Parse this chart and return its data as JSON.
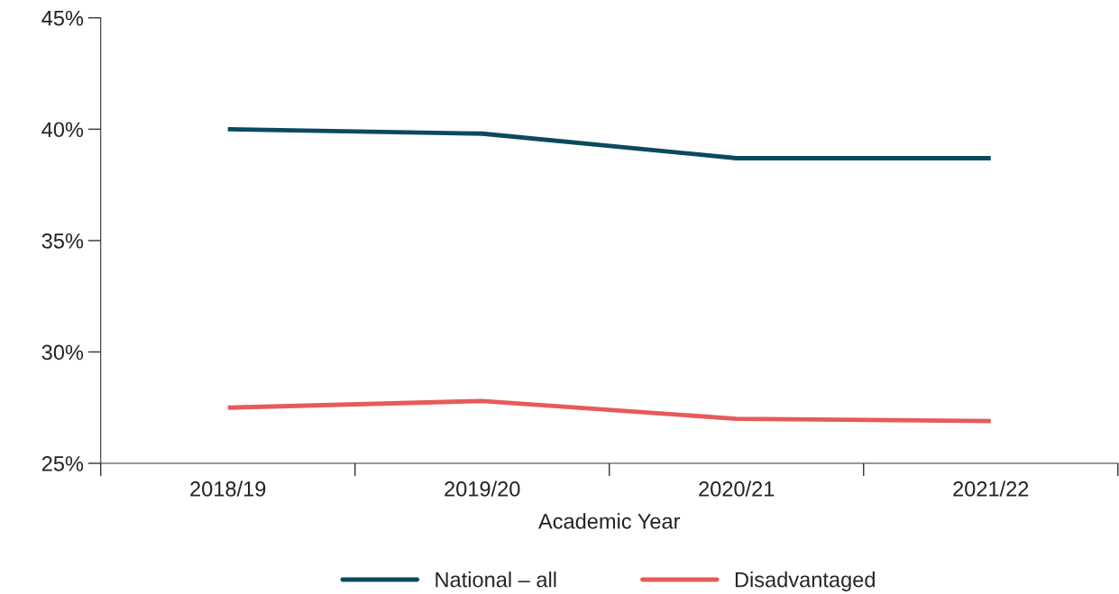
{
  "chart_data": {
    "type": "line",
    "xlabel": "Academic Year",
    "categories": [
      "2018/19",
      "2019/20",
      "2020/21",
      "2021/22"
    ],
    "series": [
      {
        "name": "National – all",
        "color": "#0b4a5e",
        "values": [
          40.0,
          39.8,
          38.7,
          38.7
        ]
      },
      {
        "name": "Disadvantaged",
        "color": "#e85a5a",
        "values": [
          27.5,
          27.8,
          27.0,
          26.9
        ]
      }
    ],
    "ylim": [
      25,
      45
    ],
    "yticks": [
      {
        "value": 25,
        "label": "25%"
      },
      {
        "value": 30,
        "label": "30%"
      },
      {
        "value": 35,
        "label": "35%"
      },
      {
        "value": 40,
        "label": "40%"
      },
      {
        "value": 45,
        "label": "45%"
      }
    ],
    "grid": false,
    "legend": "bottom",
    "marker": "none",
    "line_style": "solid"
  }
}
